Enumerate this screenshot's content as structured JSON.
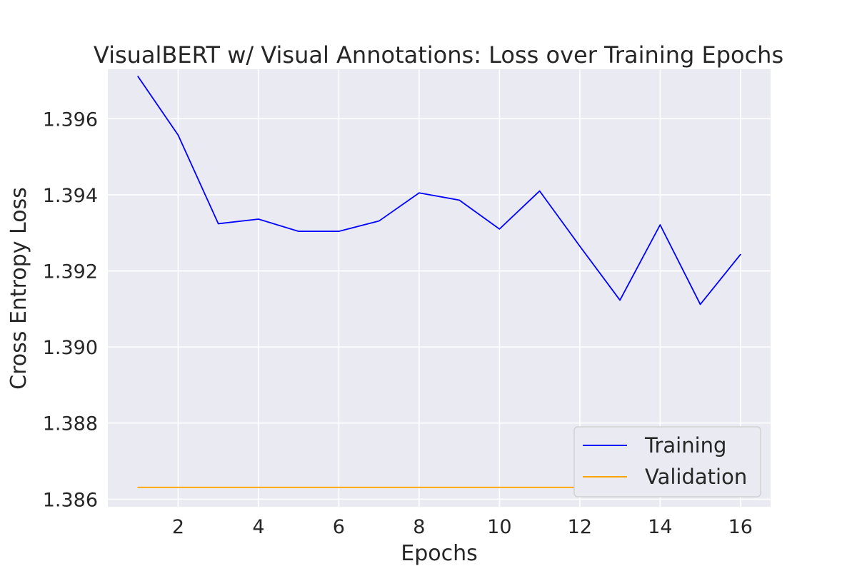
{
  "chart_data": {
    "type": "line",
    "title": "VisualBERT w/ Visual Annotations: Loss over Training Epochs",
    "xlabel": "Epochs",
    "ylabel": "Cross Entropy Loss",
    "xlim": [
      0.25,
      16.75
    ],
    "ylim": [
      1.3858,
      1.3973
    ],
    "x_ticks": [
      2,
      4,
      6,
      8,
      10,
      12,
      14,
      16
    ],
    "y_ticks": [
      1.386,
      1.388,
      1.39,
      1.392,
      1.394,
      1.396
    ],
    "x_tick_labels": [
      "2",
      "4",
      "6",
      "8",
      "10",
      "12",
      "14",
      "16"
    ],
    "y_tick_labels": [
      "1.386",
      "1.388",
      "1.390",
      "1.392",
      "1.394",
      "1.396"
    ],
    "grid": true,
    "legend_position": "lower-right",
    "x": [
      1,
      2,
      3,
      4,
      5,
      6,
      7,
      8,
      9,
      10,
      11,
      12,
      13,
      14,
      15,
      16
    ],
    "series": [
      {
        "name": "Training",
        "color": "#0000ff",
        "values": [
          1.39711,
          1.39557,
          1.39324,
          1.39336,
          1.39304,
          1.39304,
          1.39331,
          1.39405,
          1.39386,
          1.3931,
          1.3941,
          1.39265,
          1.39123,
          1.39321,
          1.39112,
          1.39243
        ]
      },
      {
        "name": "Validation",
        "color": "#ffa500",
        "values": [
          1.38631,
          1.38631,
          1.38631,
          1.38631,
          1.38631,
          1.38631,
          1.38631,
          1.38631,
          1.38631,
          1.38631,
          1.38631,
          1.38631,
          1.38631,
          1.38631,
          1.38631,
          1.38631
        ]
      }
    ]
  }
}
